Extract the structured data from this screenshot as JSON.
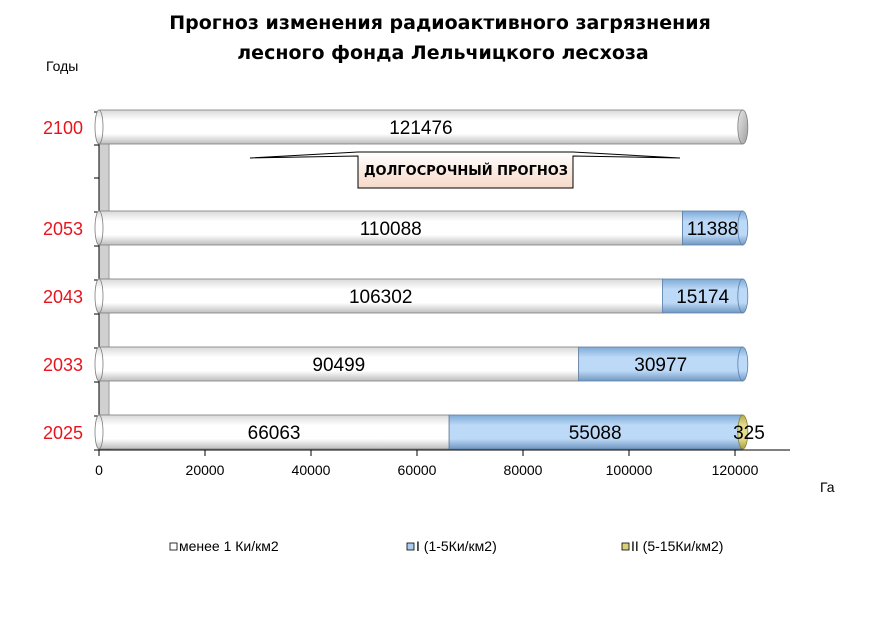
{
  "chart_data": {
    "type": "bar",
    "orientation": "horizontal",
    "stacked": true,
    "title_lines": [
      "Прогноз изменения  радиоактивного загрязнения",
      "лесного фонда  Лельчицкого лесхоза"
    ],
    "ylabel": "Годы",
    "xlabel": "Га",
    "xlim": [
      0,
      130000
    ],
    "x_ticks": [
      0,
      20000,
      40000,
      60000,
      80000,
      100000,
      120000
    ],
    "categories": [
      "2100",
      "2053",
      "2043",
      "2033",
      "2025"
    ],
    "series": [
      {
        "name": "менее 1 Ки/км2",
        "color": "#ffffff",
        "values": [
          121476,
          110088,
          106302,
          90499,
          66063
        ]
      },
      {
        "name": "I (1-5Ки/км2)",
        "color": "#a9cdf0",
        "values": [
          0,
          11388,
          15174,
          30977,
          55088
        ]
      },
      {
        "name": "II (5-15Ки/км2)",
        "color": "#d8d07a",
        "values": [
          0,
          0,
          0,
          0,
          325
        ]
      }
    ],
    "data_labels": [
      [
        "121476",
        "110088",
        "106302",
        "90499",
        "66063"
      ],
      [
        "",
        "11388",
        "15174",
        "30977",
        "55088"
      ],
      [
        "",
        "",
        "",
        "",
        "325"
      ]
    ],
    "annotation": "ДОЛГОСРОЧНЫЙ ПРОГНОЗ",
    "legend_position": "bottom",
    "grid": false
  }
}
